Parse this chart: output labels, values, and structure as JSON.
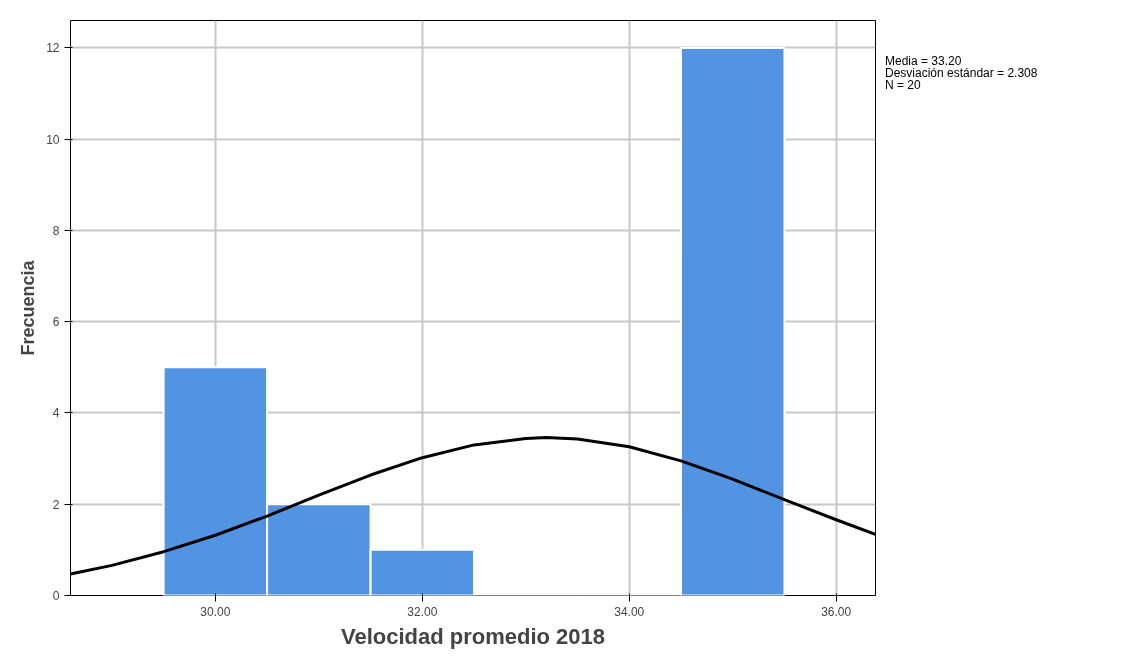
{
  "chart_data": {
    "type": "histogram",
    "xlabel": "Velocidad promedio 2018",
    "ylabel": "Frecuencia",
    "bins": [
      29.5,
      30.5,
      31.5,
      32.5,
      33.5,
      34.5,
      35.5
    ],
    "values": [
      5,
      2,
      1,
      0,
      0,
      12
    ],
    "color": "#5294e2",
    "series": [
      {
        "type": "line",
        "color": "#000000",
        "x": [
          28.6,
          29.0,
          29.5,
          30.0,
          30.5,
          31.0,
          31.5,
          32.0,
          32.5,
          33.0,
          33.2,
          33.5,
          34.0,
          34.5,
          35.0,
          35.5,
          36.0,
          36.38
        ],
        "values": [
          0.47,
          0.66,
          0.96,
          1.32,
          1.74,
          2.2,
          2.64,
          3.02,
          3.3,
          3.44,
          3.46,
          3.43,
          3.26,
          2.95,
          2.55,
          2.1,
          1.66,
          1.34
        ]
      }
    ],
    "xlim": [
      28.6,
      36.38
    ],
    "ylim": [
      0,
      12.6
    ],
    "xticks": [
      {
        "value": 30,
        "label": "30.00"
      },
      {
        "value": 32,
        "label": "32.00"
      },
      {
        "value": 34,
        "label": "34.00"
      },
      {
        "value": 36,
        "label": "36.00"
      }
    ],
    "yticks": [
      0,
      2,
      4,
      6,
      8,
      10,
      12
    ],
    "grid": true,
    "annotations": [
      "Media = 33.20",
      "Desviación estándar = 2.308",
      "N = 20"
    ]
  }
}
